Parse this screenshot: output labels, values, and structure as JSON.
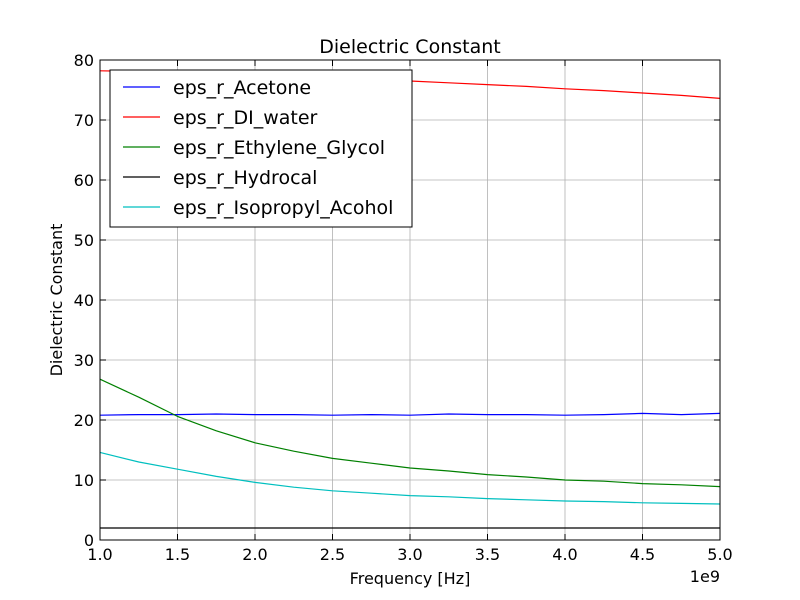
{
  "chart_data": {
    "type": "line",
    "title": "Dielectric Constant",
    "xlabel": "Frequency [Hz]",
    "ylabel": "Dielectric Constant",
    "x_multiplier_label": "1e9",
    "xlim": [
      1.0,
      5.0
    ],
    "ylim": [
      0,
      80
    ],
    "x_ticks": [
      1.0,
      1.5,
      2.0,
      2.5,
      3.0,
      3.5,
      4.0,
      4.5,
      5.0
    ],
    "x_tick_labels": [
      "1.0",
      "1.5",
      "2.0",
      "2.5",
      "3.0",
      "3.5",
      "4.0",
      "4.5",
      "5.0"
    ],
    "y_ticks": [
      0,
      10,
      20,
      30,
      40,
      50,
      60,
      70,
      80
    ],
    "y_tick_labels": [
      "0",
      "10",
      "20",
      "30",
      "40",
      "50",
      "60",
      "70",
      "80"
    ],
    "grid": true,
    "legend_position": "top-left",
    "x": [
      1.0,
      1.25,
      1.5,
      1.75,
      2.0,
      2.25,
      2.5,
      2.75,
      3.0,
      3.25,
      3.5,
      3.75,
      4.0,
      4.25,
      4.5,
      4.75,
      5.0
    ],
    "series": [
      {
        "name": "eps_r_Acetone",
        "color": "#0000ff",
        "values": [
          20.8,
          20.9,
          20.9,
          21.0,
          20.9,
          20.9,
          20.8,
          20.9,
          20.8,
          21.0,
          20.9,
          20.9,
          20.8,
          20.9,
          21.1,
          20.9,
          21.1
        ]
      },
      {
        "name": "eps_r_DI_water",
        "color": "#ff0000",
        "values": [
          78.2,
          78.1,
          78.0,
          77.8,
          77.6,
          77.3,
          77.0,
          76.7,
          76.5,
          76.2,
          75.9,
          75.6,
          75.2,
          74.9,
          74.5,
          74.1,
          73.6
        ]
      },
      {
        "name": "eps_r_Ethylene_Glycol",
        "color": "#008000",
        "values": [
          26.8,
          23.8,
          20.6,
          18.2,
          16.2,
          14.8,
          13.6,
          12.8,
          12.0,
          11.5,
          10.9,
          10.5,
          10.0,
          9.8,
          9.4,
          9.2,
          8.9
        ]
      },
      {
        "name": "eps_r_Hydrocal",
        "color": "#000000",
        "values": [
          2.0,
          2.0,
          2.0,
          2.0,
          2.0,
          2.0,
          2.0,
          2.0,
          2.0,
          2.0,
          2.0,
          2.0,
          2.0,
          2.0,
          2.0,
          2.0,
          2.0
        ]
      },
      {
        "name": "eps_r_Isopropyl_Acohol",
        "color": "#00bfbf",
        "values": [
          14.6,
          13.0,
          11.8,
          10.6,
          9.6,
          8.8,
          8.2,
          7.8,
          7.4,
          7.2,
          6.9,
          6.7,
          6.5,
          6.4,
          6.2,
          6.1,
          6.0
        ]
      }
    ]
  }
}
